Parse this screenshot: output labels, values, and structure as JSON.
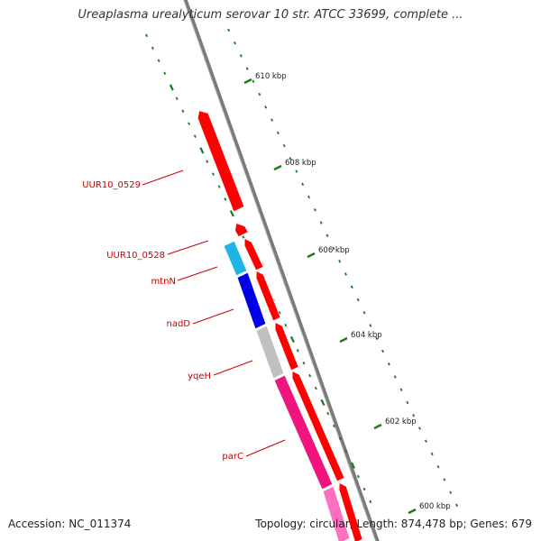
{
  "header": {
    "title": "Ureaplasma urealyticum serovar 10 str. ATCC 33699, complete ..."
  },
  "footer": {
    "accession": "Accession: NC_011374",
    "summary": "Topology: circular; Length: 874,478 bp; Genes: 679"
  },
  "colors": {
    "backbone": "#7a7a7a",
    "tick_green": "#1a7a1a",
    "cds_red": "#ff0000",
    "gene_label": "#cc0000",
    "light_blue": "#1eb4e6",
    "blue": "#0000e6",
    "gray": "#c0c0c0",
    "pink": "#f0147f",
    "light_pink": "#ff6fc0"
  },
  "ruler": {
    "major_ticks": [
      {
        "label": "610 kbp"
      },
      {
        "label": "608 kbp"
      },
      {
        "label": "606 kbp"
      },
      {
        "label": "604 kbp"
      },
      {
        "label": "602 kbp"
      },
      {
        "label": "600 kbp"
      }
    ]
  },
  "genes": [
    {
      "label": "UUR10_0529"
    },
    {
      "label": "UUR10_0528"
    },
    {
      "label": "mtnN"
    },
    {
      "label": "nadD"
    },
    {
      "label": "yqeH"
    },
    {
      "label": "parC"
    }
  ]
}
